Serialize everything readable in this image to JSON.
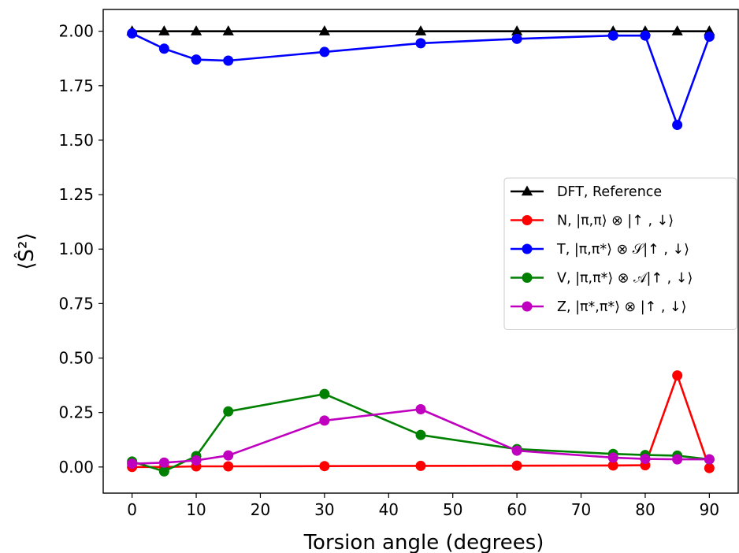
{
  "chart_data": {
    "type": "line",
    "xlabel": "Torsion angle (degrees)",
    "ylabel": "⟨Ŝ²⟩",
    "xlim": [
      -4.5,
      94.5
    ],
    "ylim": [
      -0.12,
      2.1
    ],
    "xticks": [
      0,
      10,
      20,
      30,
      40,
      50,
      60,
      70,
      80,
      90
    ],
    "yticks": [
      0.0,
      0.25,
      0.5,
      0.75,
      1.0,
      1.25,
      1.5,
      1.75,
      2.0
    ],
    "ytick_labels": [
      "0.00",
      "0.25",
      "0.50",
      "0.75",
      "1.00",
      "1.25",
      "1.50",
      "1.75",
      "2.00"
    ],
    "x": [
      0,
      5,
      10,
      15,
      30,
      45,
      60,
      75,
      80,
      85,
      90
    ],
    "legend_position": "center-right",
    "grid": false,
    "series": [
      {
        "name": "DFT, Reference",
        "color": "#000000",
        "marker": "triangle",
        "values": [
          2.0,
          2.0,
          2.0,
          2.0,
          2.0,
          2.0,
          2.0,
          2.0,
          2.0,
          2.0,
          2.0
        ]
      },
      {
        "name": "N, |π,π⟩ ⊗ |↑ , ↓⟩",
        "color": "#ff0000",
        "marker": "circle",
        "values": [
          0.0,
          0.0,
          0.003,
          0.003,
          0.004,
          0.005,
          0.006,
          0.007,
          0.008,
          0.42,
          -0.005
        ]
      },
      {
        "name": "T, |π,π*⟩ ⊗ 𝒮|↑ , ↓⟩",
        "color": "#0000ff",
        "marker": "circle",
        "values": [
          1.99,
          1.92,
          1.87,
          1.865,
          1.905,
          1.945,
          1.965,
          1.98,
          1.98,
          1.57,
          1.975
        ]
      },
      {
        "name": "V, |π,π*⟩ ⊗ 𝒜|↑ , ↓⟩",
        "color": "#008000",
        "marker": "circle",
        "values": [
          0.025,
          -0.02,
          0.05,
          0.255,
          0.335,
          0.147,
          0.082,
          0.06,
          0.055,
          0.052,
          0.035
        ]
      },
      {
        "name": "Z, |π*,π*⟩ ⊗ |↑ , ↓⟩",
        "color": "#bf00bf",
        "marker": "circle",
        "values": [
          0.015,
          0.02,
          0.03,
          0.053,
          0.213,
          0.265,
          0.075,
          0.043,
          0.037,
          0.035,
          0.035
        ]
      }
    ]
  }
}
